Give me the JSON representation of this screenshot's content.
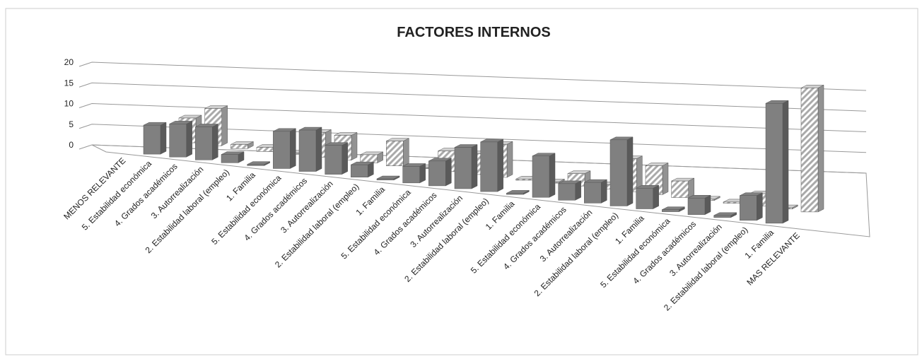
{
  "chart_data": {
    "type": "bar3d",
    "title": "FACTORES INTERNOS",
    "categories": [
      "MENOS RELEVANTE",
      "5. Estabilidad económica",
      "4. Grados académicos",
      "3. Autorrealización",
      "2. Estabilidad laboral (empleo)",
      "1. Familia",
      "5. Estabilidad económica",
      "4. Grados académicos",
      "3. Autorrealización",
      "2. Estabilidad laboral (empleo)",
      "1. Familia",
      "5. Estabilidad económica",
      "4. Grados académicos",
      "3. Autorrealización",
      "2. Estabilidad laboral (empleo)",
      "1. Familia",
      "5. Estabilidad económica",
      "4. Grados académicos",
      "3. Autorrealización",
      "2. Estabilidad laboral (empleo)",
      "1. Familia",
      "5. Estabilidad económica",
      "4. Grados académicos",
      "3. Autorrealización",
      "2. Estabilidad laboral (empleo)",
      "1. Familia",
      "MAS RELEVANTE"
    ],
    "series": [
      {
        "color": "#808080",
        "values": [
          null,
          7,
          8,
          8,
          2,
          0.3,
          9,
          10,
          7,
          3,
          0.3,
          4,
          6,
          10,
          12,
          0.3,
          10,
          4,
          5,
          16,
          5,
          0.5,
          4,
          0.5,
          6,
          29,
          null
        ]
      },
      {
        "color": "#d0d0d0",
        "pattern": "hatch",
        "values": [
          null,
          6,
          9,
          1,
          1,
          0.3,
          6,
          6,
          2,
          6,
          0.3,
          5,
          5,
          8,
          0.3,
          0.3,
          3,
          1,
          8,
          7,
          4,
          0.3,
          0.3,
          3,
          0.3,
          30,
          null
        ]
      }
    ],
    "ylim": [
      0,
      20
    ],
    "yticks": [
      0,
      5,
      10,
      15,
      20
    ],
    "grid": true
  }
}
